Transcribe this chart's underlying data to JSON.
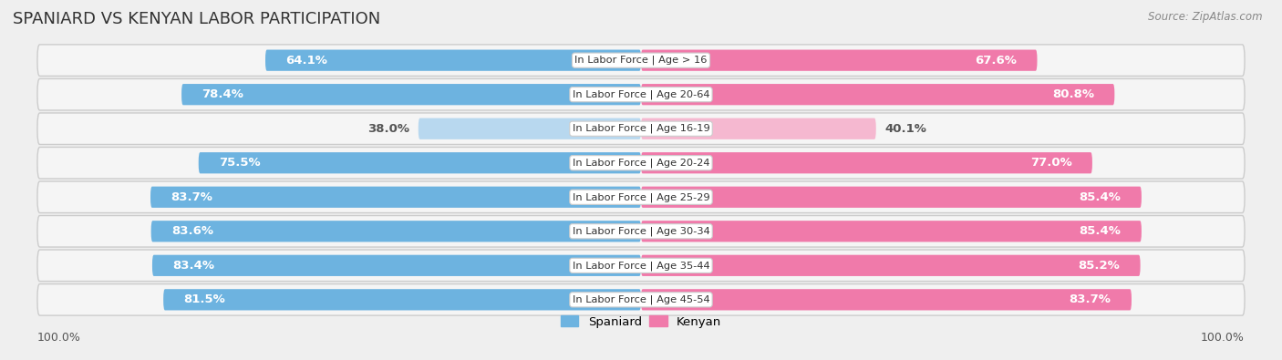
{
  "title": "SPANIARD VS KENYAN LABOR PARTICIPATION",
  "source": "Source: ZipAtlas.com",
  "categories": [
    "In Labor Force | Age > 16",
    "In Labor Force | Age 20-64",
    "In Labor Force | Age 16-19",
    "In Labor Force | Age 20-24",
    "In Labor Force | Age 25-29",
    "In Labor Force | Age 30-34",
    "In Labor Force | Age 35-44",
    "In Labor Force | Age 45-54"
  ],
  "spaniard_values": [
    64.1,
    78.4,
    38.0,
    75.5,
    83.7,
    83.6,
    83.4,
    81.5
  ],
  "kenyan_values": [
    67.6,
    80.8,
    40.1,
    77.0,
    85.4,
    85.4,
    85.2,
    83.7
  ],
  "spaniard_color_dark": "#6db3e0",
  "spaniard_color_light": "#b8d8ef",
  "kenyan_color_dark": "#f07aaa",
  "kenyan_color_light": "#f5b8d0",
  "row_bg_color": "#e8e8e8",
  "row_inner_color": "#f5f5f5",
  "bg_color": "#efefef",
  "title_fontsize": 13,
  "bar_height": 0.62,
  "axis_limit": 100.0,
  "legend_labels": [
    "Spaniard",
    "Kenyan"
  ],
  "value_label_fontsize": 9.5
}
